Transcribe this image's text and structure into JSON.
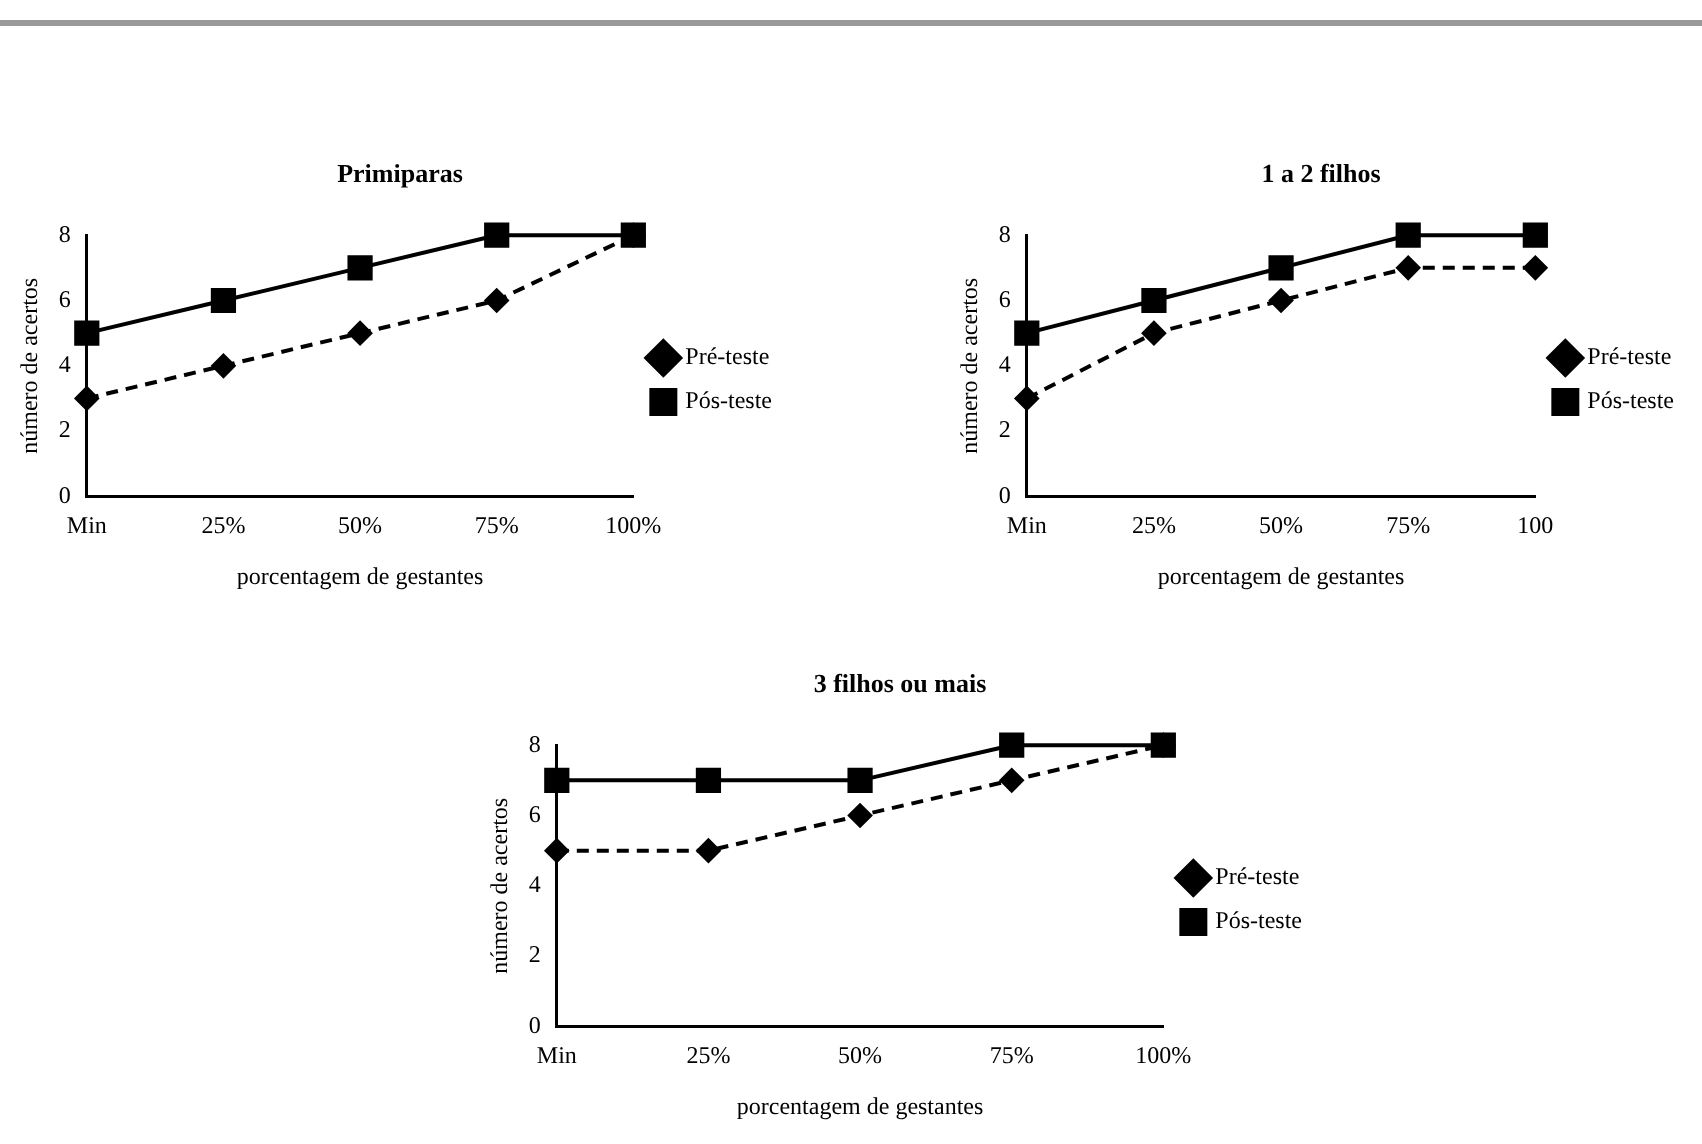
{
  "chart_data": [
    {
      "type": "line",
      "title": "Primiparas",
      "xlabel": "porcentagem de gestantes",
      "ylabel": "número de acertos",
      "categories": [
        "Min",
        "25%",
        "50%",
        "75%",
        "100%"
      ],
      "ylim": [
        0,
        8
      ],
      "yticks": [
        0,
        2,
        4,
        6,
        8
      ],
      "grid": false,
      "legend": "right",
      "series": [
        {
          "name": "Pré-teste",
          "color": "#000000",
          "values": [
            3,
            4,
            5,
            6,
            8
          ],
          "marker": "diamond",
          "line_style": "dashed"
        },
        {
          "name": "Pós-teste",
          "color": "#000000",
          "values": [
            5,
            6,
            7,
            8,
            8
          ],
          "marker": "square",
          "line_style": "solid"
        }
      ]
    },
    {
      "type": "line",
      "title": "1 a 2 filhos",
      "xlabel": "porcentagem de gestantes",
      "ylabel": "número de acertos",
      "categories": [
        "Min",
        "25%",
        "50%",
        "75%",
        "100"
      ],
      "ylim": [
        0,
        8
      ],
      "yticks": [
        0,
        2,
        4,
        6,
        8
      ],
      "grid": false,
      "legend": "right",
      "series": [
        {
          "name": "Pré-teste",
          "color": "#000000",
          "values": [
            3,
            5,
            6,
            7,
            7
          ],
          "marker": "diamond",
          "line_style": "dashed"
        },
        {
          "name": "Pós-teste",
          "color": "#000000",
          "values": [
            5,
            6,
            7,
            8,
            8
          ],
          "marker": "square",
          "line_style": "solid"
        }
      ]
    },
    {
      "type": "line",
      "title": "3 filhos ou mais",
      "xlabel": "porcentagem de gestantes",
      "ylabel": "número de acertos",
      "categories": [
        "Min",
        "25%",
        "50%",
        "75%",
        "100%"
      ],
      "ylim": [
        0,
        8
      ],
      "yticks": [
        0,
        2,
        4,
        6,
        8
      ],
      "grid": false,
      "legend": "right",
      "series": [
        {
          "name": "Pré-teste",
          "color": "#000000",
          "values": [
            5,
            5,
            6,
            7,
            8
          ],
          "marker": "diamond",
          "line_style": "dashed"
        },
        {
          "name": "Pós-teste",
          "color": "#000000",
          "values": [
            7,
            7,
            7,
            8,
            8
          ],
          "marker": "square",
          "line_style": "solid"
        }
      ]
    }
  ]
}
